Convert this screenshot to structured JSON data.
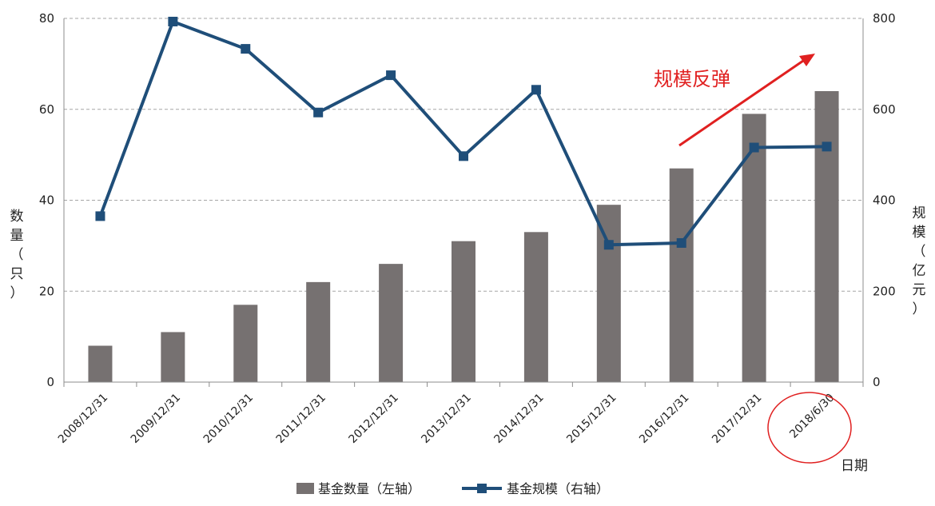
{
  "chart_data": {
    "type": "bar",
    "categories": [
      "2008/12/31",
      "2009/12/31",
      "2010/12/31",
      "2011/12/31",
      "2012/12/31",
      "2013/12/31",
      "2014/12/31",
      "2015/12/31",
      "2016/12/31",
      "2017/12/31",
      "2018/6/30"
    ],
    "series": [
      {
        "name": "基金数量（左轴）",
        "type": "bar",
        "axis": "left",
        "color": "#767171",
        "values": [
          8,
          11,
          17,
          22,
          26,
          31,
          33,
          39,
          47,
          59,
          64
        ]
      },
      {
        "name": "基金规模（右轴）",
        "type": "line",
        "axis": "right",
        "color": "#1F4E79",
        "values": [
          365,
          793,
          733,
          593,
          675,
          497,
          643,
          302,
          306,
          516,
          518
        ]
      }
    ],
    "left_axis": {
      "label_chars": [
        "数",
        "量",
        "（",
        "只",
        "）"
      ],
      "ylim": [
        0,
        80
      ],
      "ticks": [
        0,
        20,
        40,
        60,
        80
      ]
    },
    "right_axis": {
      "label_chars": [
        "规",
        "模",
        "（",
        "亿",
        "元",
        "）"
      ],
      "ylim": [
        0,
        800
      ],
      "ticks": [
        0,
        200,
        400,
        600,
        800
      ]
    },
    "xlabel": "日期",
    "grid": "dashed horizontal",
    "legend_position": "bottom",
    "annotation": {
      "text": "规模反弹",
      "color": "#e02020"
    },
    "highlight_category": "2018/6/30"
  }
}
